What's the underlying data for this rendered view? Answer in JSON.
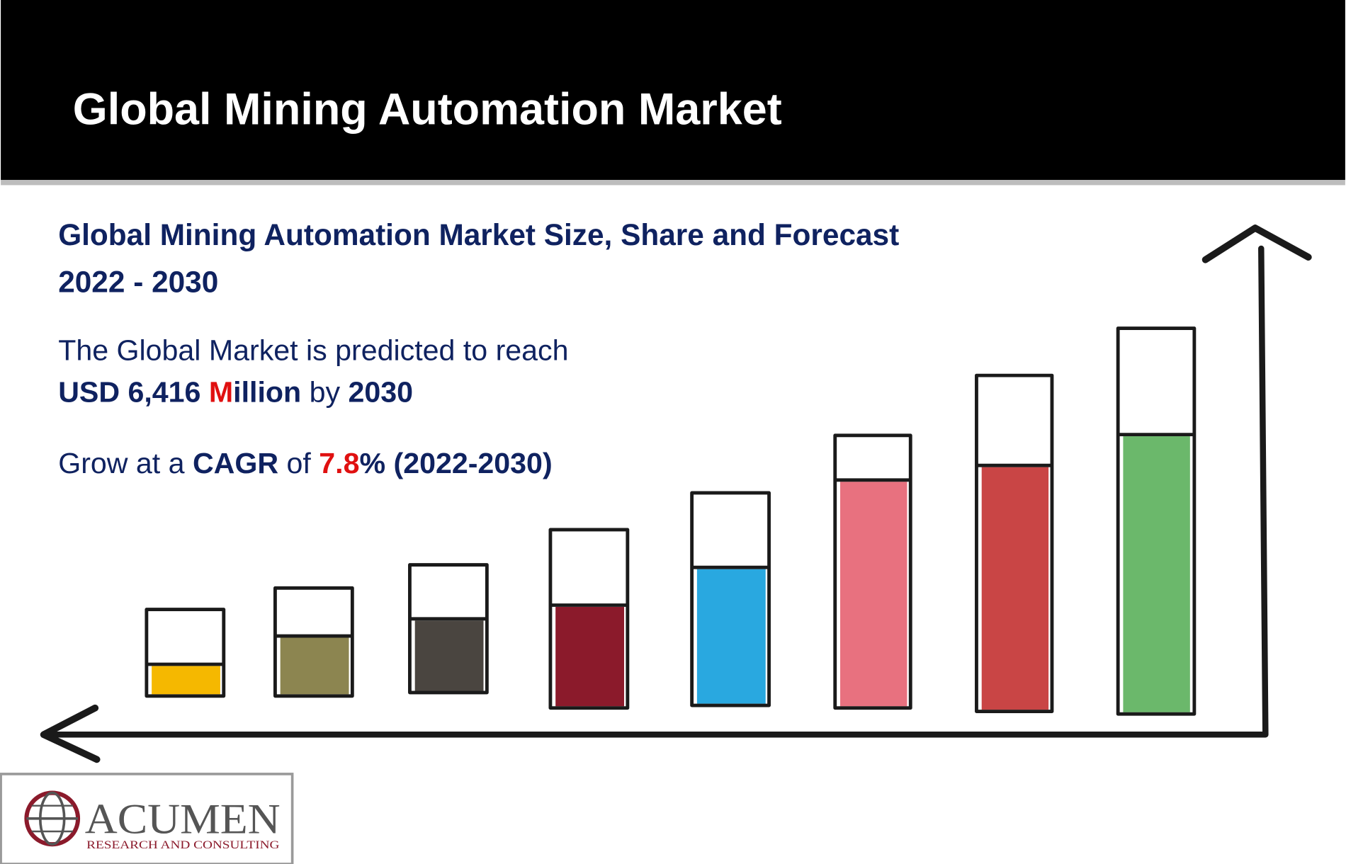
{
  "header": {
    "title": "Global Mining Automation Market"
  },
  "subtitle_lines": [
    "Global Mining Automation Market Size, Share and Forecast",
    "2022 - 2030"
  ],
  "forecast": {
    "intro": "The Global Market is predicted to reach",
    "amount": "USD 6,416 ",
    "unit_initial": "M",
    "unit_rest": "illion",
    "by": " by ",
    "year": "2030"
  },
  "growth": {
    "intro": "Grow at a ",
    "metric": "CAGR",
    "of": " of ",
    "rate": "7.8",
    "rest": "% (2022-2030)"
  },
  "logo": {
    "name": "ACUMEN",
    "tagline": "RESEARCH AND CONSULTING"
  }
}
